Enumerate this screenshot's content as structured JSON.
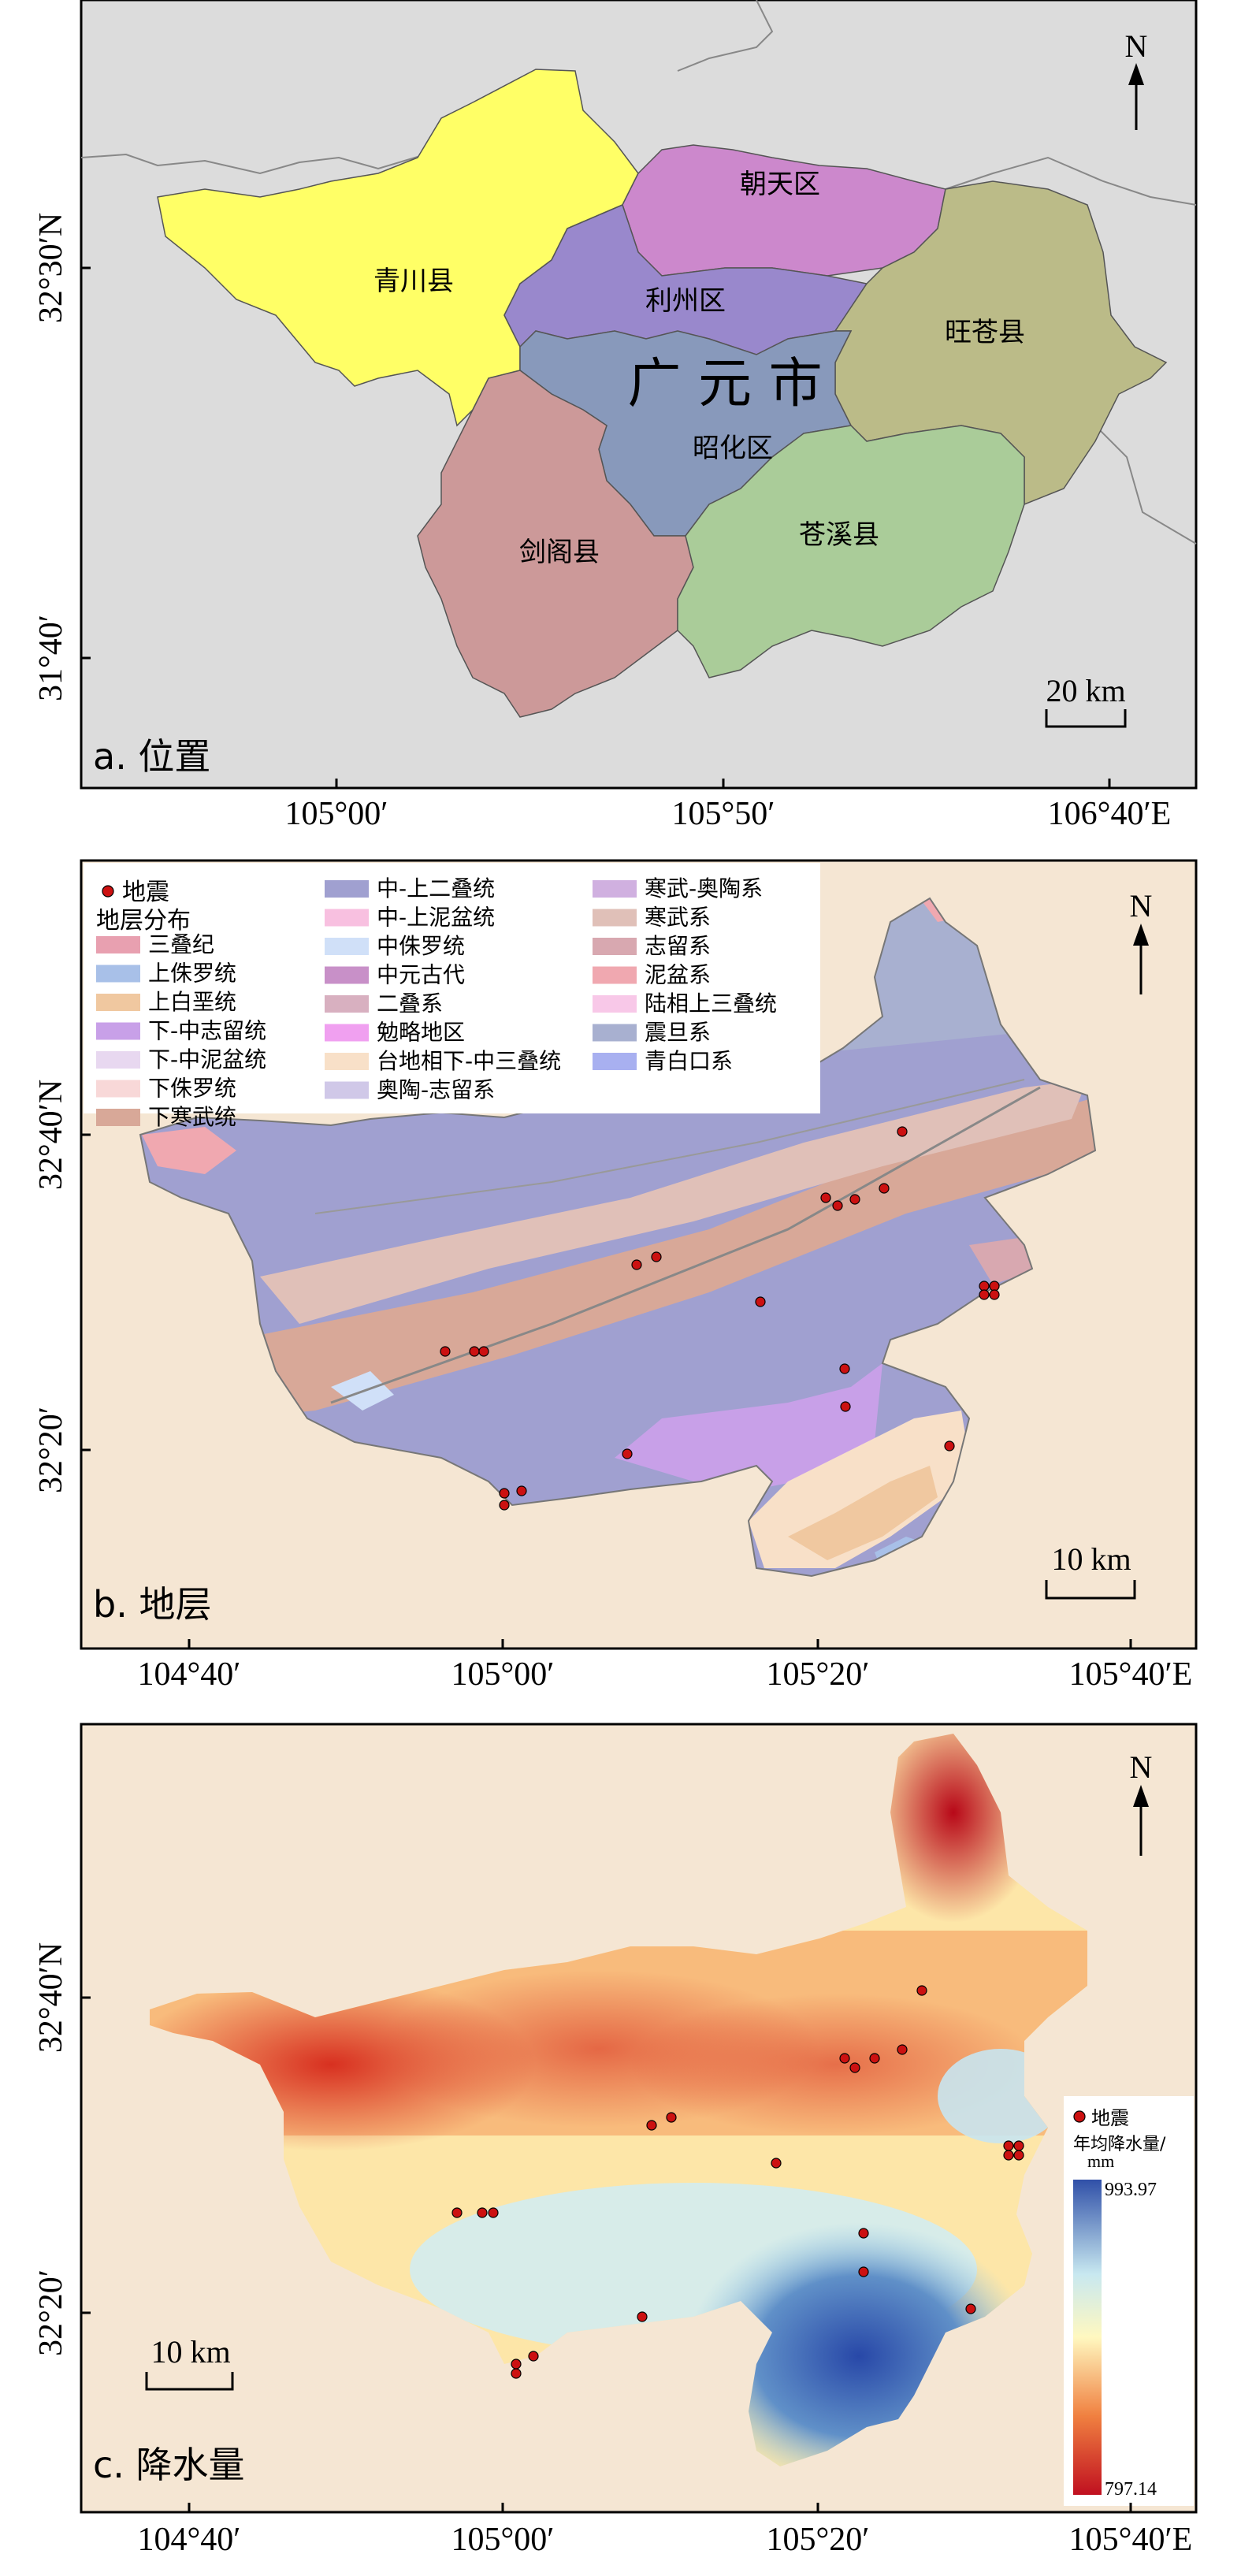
{
  "panel_a": {
    "label": "a. 位置",
    "north": "N",
    "scale": "20 km",
    "city_label": "广 元 市",
    "districts": [
      {
        "name": "青川县",
        "color": "#ffff66"
      },
      {
        "name": "朝天区",
        "color": "#cc88cc"
      },
      {
        "name": "利州区",
        "color": "#9988cc"
      },
      {
        "name": "旺苍县",
        "color": "#bbbb88"
      },
      {
        "name": "昭化区",
        "color": "#8899bb"
      },
      {
        "name": "剑阁县",
        "color": "#cc9999"
      },
      {
        "name": "苍溪县",
        "color": "#aacc99"
      }
    ],
    "y_ticks": [
      "32°30′N",
      "31°40′"
    ],
    "x_ticks": [
      "105°00′",
      "105°50′",
      "106°40′E"
    ]
  },
  "panel_b": {
    "label": "b. 地层",
    "north": "N",
    "scale": "10 km",
    "legend_eq": "地震",
    "legend_title": "地层分布",
    "strata": [
      {
        "name": "三叠纪",
        "color": "#e8a0b0"
      },
      {
        "name": "上侏罗统",
        "color": "#a8c0e8"
      },
      {
        "name": "上白垩统",
        "color": "#f0c8a0"
      },
      {
        "name": "下-中志留统",
        "color": "#c8a0e8"
      },
      {
        "name": "下-中泥盆统",
        "color": "#e8d8f0"
      },
      {
        "name": "下侏罗统",
        "color": "#f8d8d8"
      },
      {
        "name": "下寒武统",
        "color": "#d8a898"
      },
      {
        "name": "中-上二叠统",
        "color": "#a0a0d0"
      },
      {
        "name": "中-上泥盆统",
        "color": "#f8c0e0"
      },
      {
        "name": "中侏罗统",
        "color": "#d0e0f8"
      },
      {
        "name": "中元古代",
        "color": "#c890c8"
      },
      {
        "name": "二叠系",
        "color": "#d8b0c0"
      },
      {
        "name": "勉略地区",
        "color": "#f0a0f0"
      },
      {
        "name": "台地相下-中三叠统",
        "color": "#f8e0c8"
      },
      {
        "name": "奥陶-志留系",
        "color": "#d0c8e8"
      },
      {
        "name": "寒武-奥陶系",
        "color": "#d0b0e0"
      },
      {
        "name": "寒武系",
        "color": "#e0c0b8"
      },
      {
        "name": "志留系",
        "color": "#d8a8b0"
      },
      {
        "name": "泥盆系",
        "color": "#f0a8b0"
      },
      {
        "name": "陆相上三叠统",
        "color": "#f8c8e8"
      },
      {
        "name": "震旦系",
        "color": "#a8b0d0"
      },
      {
        "name": "青白口系",
        "color": "#a8b0f0"
      }
    ],
    "y_ticks": [
      "32°40′N",
      "32°20′"
    ],
    "x_ticks": [
      "104°40′",
      "105°00′",
      "105°20′",
      "105°40′E"
    ]
  },
  "panel_c": {
    "label": "c. 降水量",
    "north": "N",
    "scale": "10 km",
    "legend_eq": "地震",
    "legend_title_1": "年均降水量/",
    "legend_title_2": "mm",
    "max": "993.97",
    "min": "797.14",
    "y_ticks": [
      "32°40′N",
      "32°20′"
    ],
    "x_ticks": [
      "104°40′",
      "105°00′",
      "105°20′",
      "105°40′E"
    ]
  },
  "colors": {
    "background_land": "#f5e6d3",
    "outside_grey": "#dcdcdc",
    "earthquake": "#cc1111"
  }
}
